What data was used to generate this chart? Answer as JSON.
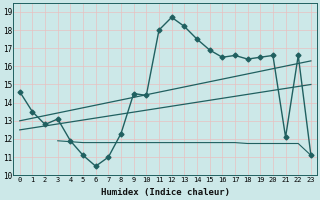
{
  "xlabel": "Humidex (Indice chaleur)",
  "xlim": [
    -0.5,
    23.5
  ],
  "ylim": [
    10,
    19.5
  ],
  "yticks": [
    10,
    11,
    12,
    13,
    14,
    15,
    16,
    17,
    18,
    19
  ],
  "xticks": [
    0,
    1,
    2,
    3,
    4,
    5,
    6,
    7,
    8,
    9,
    10,
    11,
    12,
    13,
    14,
    15,
    16,
    17,
    18,
    19,
    20,
    21,
    22,
    23
  ],
  "bg_color": "#cce8e8",
  "line_color": "#206060",
  "grid_color": "#e8c0c0",
  "series": [
    {
      "x": [
        0,
        1,
        2,
        3,
        4,
        5,
        6,
        7,
        8,
        9,
        10,
        11,
        12,
        13,
        14,
        15,
        16,
        17,
        18,
        19,
        20,
        21,
        22,
        23
      ],
      "y": [
        14.6,
        13.5,
        12.8,
        13.1,
        11.9,
        11.1,
        10.5,
        11.0,
        12.3,
        14.5,
        14.4,
        18.0,
        18.7,
        18.2,
        17.5,
        16.9,
        16.5,
        16.6,
        16.4,
        16.5,
        16.6,
        12.1,
        16.6,
        11.1
      ],
      "marker": "D",
      "markersize": 2.5,
      "linewidth": 1.0,
      "has_marker": true
    },
    {
      "x": [
        0,
        23
      ],
      "y": [
        13.0,
        16.3
      ],
      "marker": null,
      "markersize": 0,
      "linewidth": 0.9,
      "has_marker": false
    },
    {
      "x": [
        0,
        23
      ],
      "y": [
        12.5,
        15.0
      ],
      "marker": null,
      "markersize": 0,
      "linewidth": 0.9,
      "has_marker": false
    },
    {
      "x": [
        3,
        4,
        5,
        6,
        7,
        8,
        9,
        10,
        11,
        12,
        13,
        14,
        15,
        16,
        17,
        18,
        19,
        20,
        21,
        22,
        23
      ],
      "y": [
        11.9,
        11.85,
        11.8,
        11.8,
        11.8,
        11.8,
        11.8,
        11.8,
        11.8,
        11.8,
        11.8,
        11.8,
        11.8,
        11.8,
        11.8,
        11.75,
        11.75,
        11.75,
        11.75,
        11.75,
        11.1
      ],
      "marker": null,
      "markersize": 0,
      "linewidth": 0.8,
      "has_marker": false
    }
  ]
}
